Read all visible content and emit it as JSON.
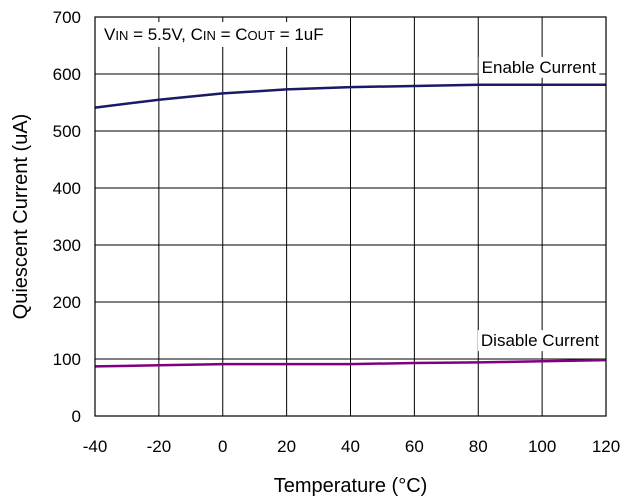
{
  "chart_data": {
    "type": "line",
    "title": "",
    "xlabel": "Temperature (°C)",
    "ylabel": "Quiescent Current (uA)",
    "xlim": [
      -40,
      120
    ],
    "ylim": [
      0,
      700
    ],
    "x_ticks": [
      -40,
      -20,
      0,
      20,
      40,
      60,
      80,
      100,
      120
    ],
    "y_ticks": [
      0,
      100,
      200,
      300,
      400,
      500,
      600,
      700
    ],
    "grid": true,
    "annotation": {
      "parts": [
        {
          "text": "V",
          "sub": false
        },
        {
          "text": "IN",
          "sub": true
        },
        {
          "text": " = 5.5V, C",
          "sub": false
        },
        {
          "text": "IN",
          "sub": true
        },
        {
          "text": " = C",
          "sub": false
        },
        {
          "text": "OUT",
          "sub": true
        },
        {
          "text": " = 1uF",
          "sub": false
        }
      ]
    },
    "series": [
      {
        "name": "Enable Current",
        "color": "#1a1a66",
        "x": [
          -40,
          -20,
          0,
          20,
          40,
          60,
          80,
          100,
          120
        ],
        "y": [
          541,
          555,
          566,
          573,
          577,
          579,
          581,
          581,
          581
        ]
      },
      {
        "name": "Disable Current",
        "color": "#800080",
        "x": [
          -40,
          -20,
          0,
          20,
          40,
          60,
          80,
          100,
          120
        ],
        "y": [
          87,
          89,
          91,
          91,
          91,
          93,
          94,
          96,
          98
        ]
      }
    ]
  }
}
